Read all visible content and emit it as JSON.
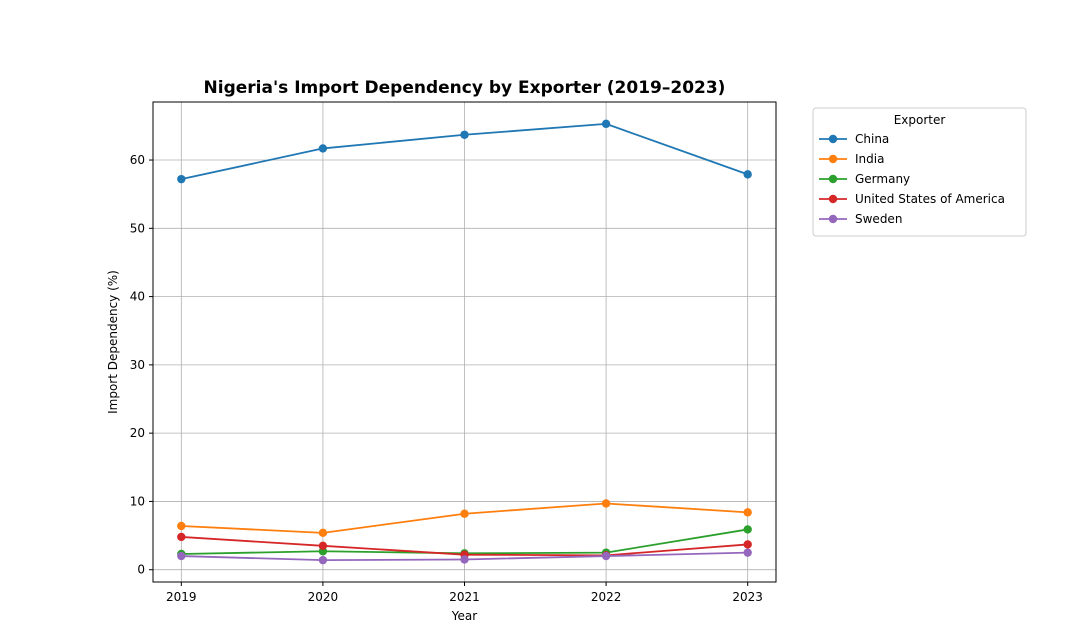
{
  "chart_data": {
    "type": "line",
    "title": "Nigeria's Import Dependency by Exporter (2019–2023)",
    "xlabel": "Year",
    "ylabel": "Import Dependency (%)",
    "x": [
      "2019",
      "2020",
      "2021",
      "2022",
      "2023"
    ],
    "xlim": [
      2018.8,
      2023.2
    ],
    "ylim": [
      -1.8,
      68.5
    ],
    "yticks": [
      "0",
      "10",
      "20",
      "30",
      "40",
      "50",
      "60"
    ],
    "grid": true,
    "legend": {
      "title": "Exporter",
      "placement": "outside-top-right"
    },
    "series": [
      {
        "name": "China",
        "color": "#1f77b4",
        "values": [
          57.2,
          61.7,
          63.7,
          65.3,
          57.9
        ]
      },
      {
        "name": "India",
        "color": "#ff7f0e",
        "values": [
          6.4,
          5.4,
          8.2,
          9.7,
          8.4
        ]
      },
      {
        "name": "Germany",
        "color": "#2ca02c",
        "values": [
          2.3,
          2.7,
          2.4,
          2.5,
          5.9
        ]
      },
      {
        "name": "United States of America",
        "color": "#d62728",
        "values": [
          4.8,
          3.5,
          2.2,
          2.1,
          3.7
        ]
      },
      {
        "name": "Sweden",
        "color": "#9467bd",
        "values": [
          2.0,
          1.4,
          1.5,
          2.0,
          2.5
        ]
      }
    ]
  }
}
